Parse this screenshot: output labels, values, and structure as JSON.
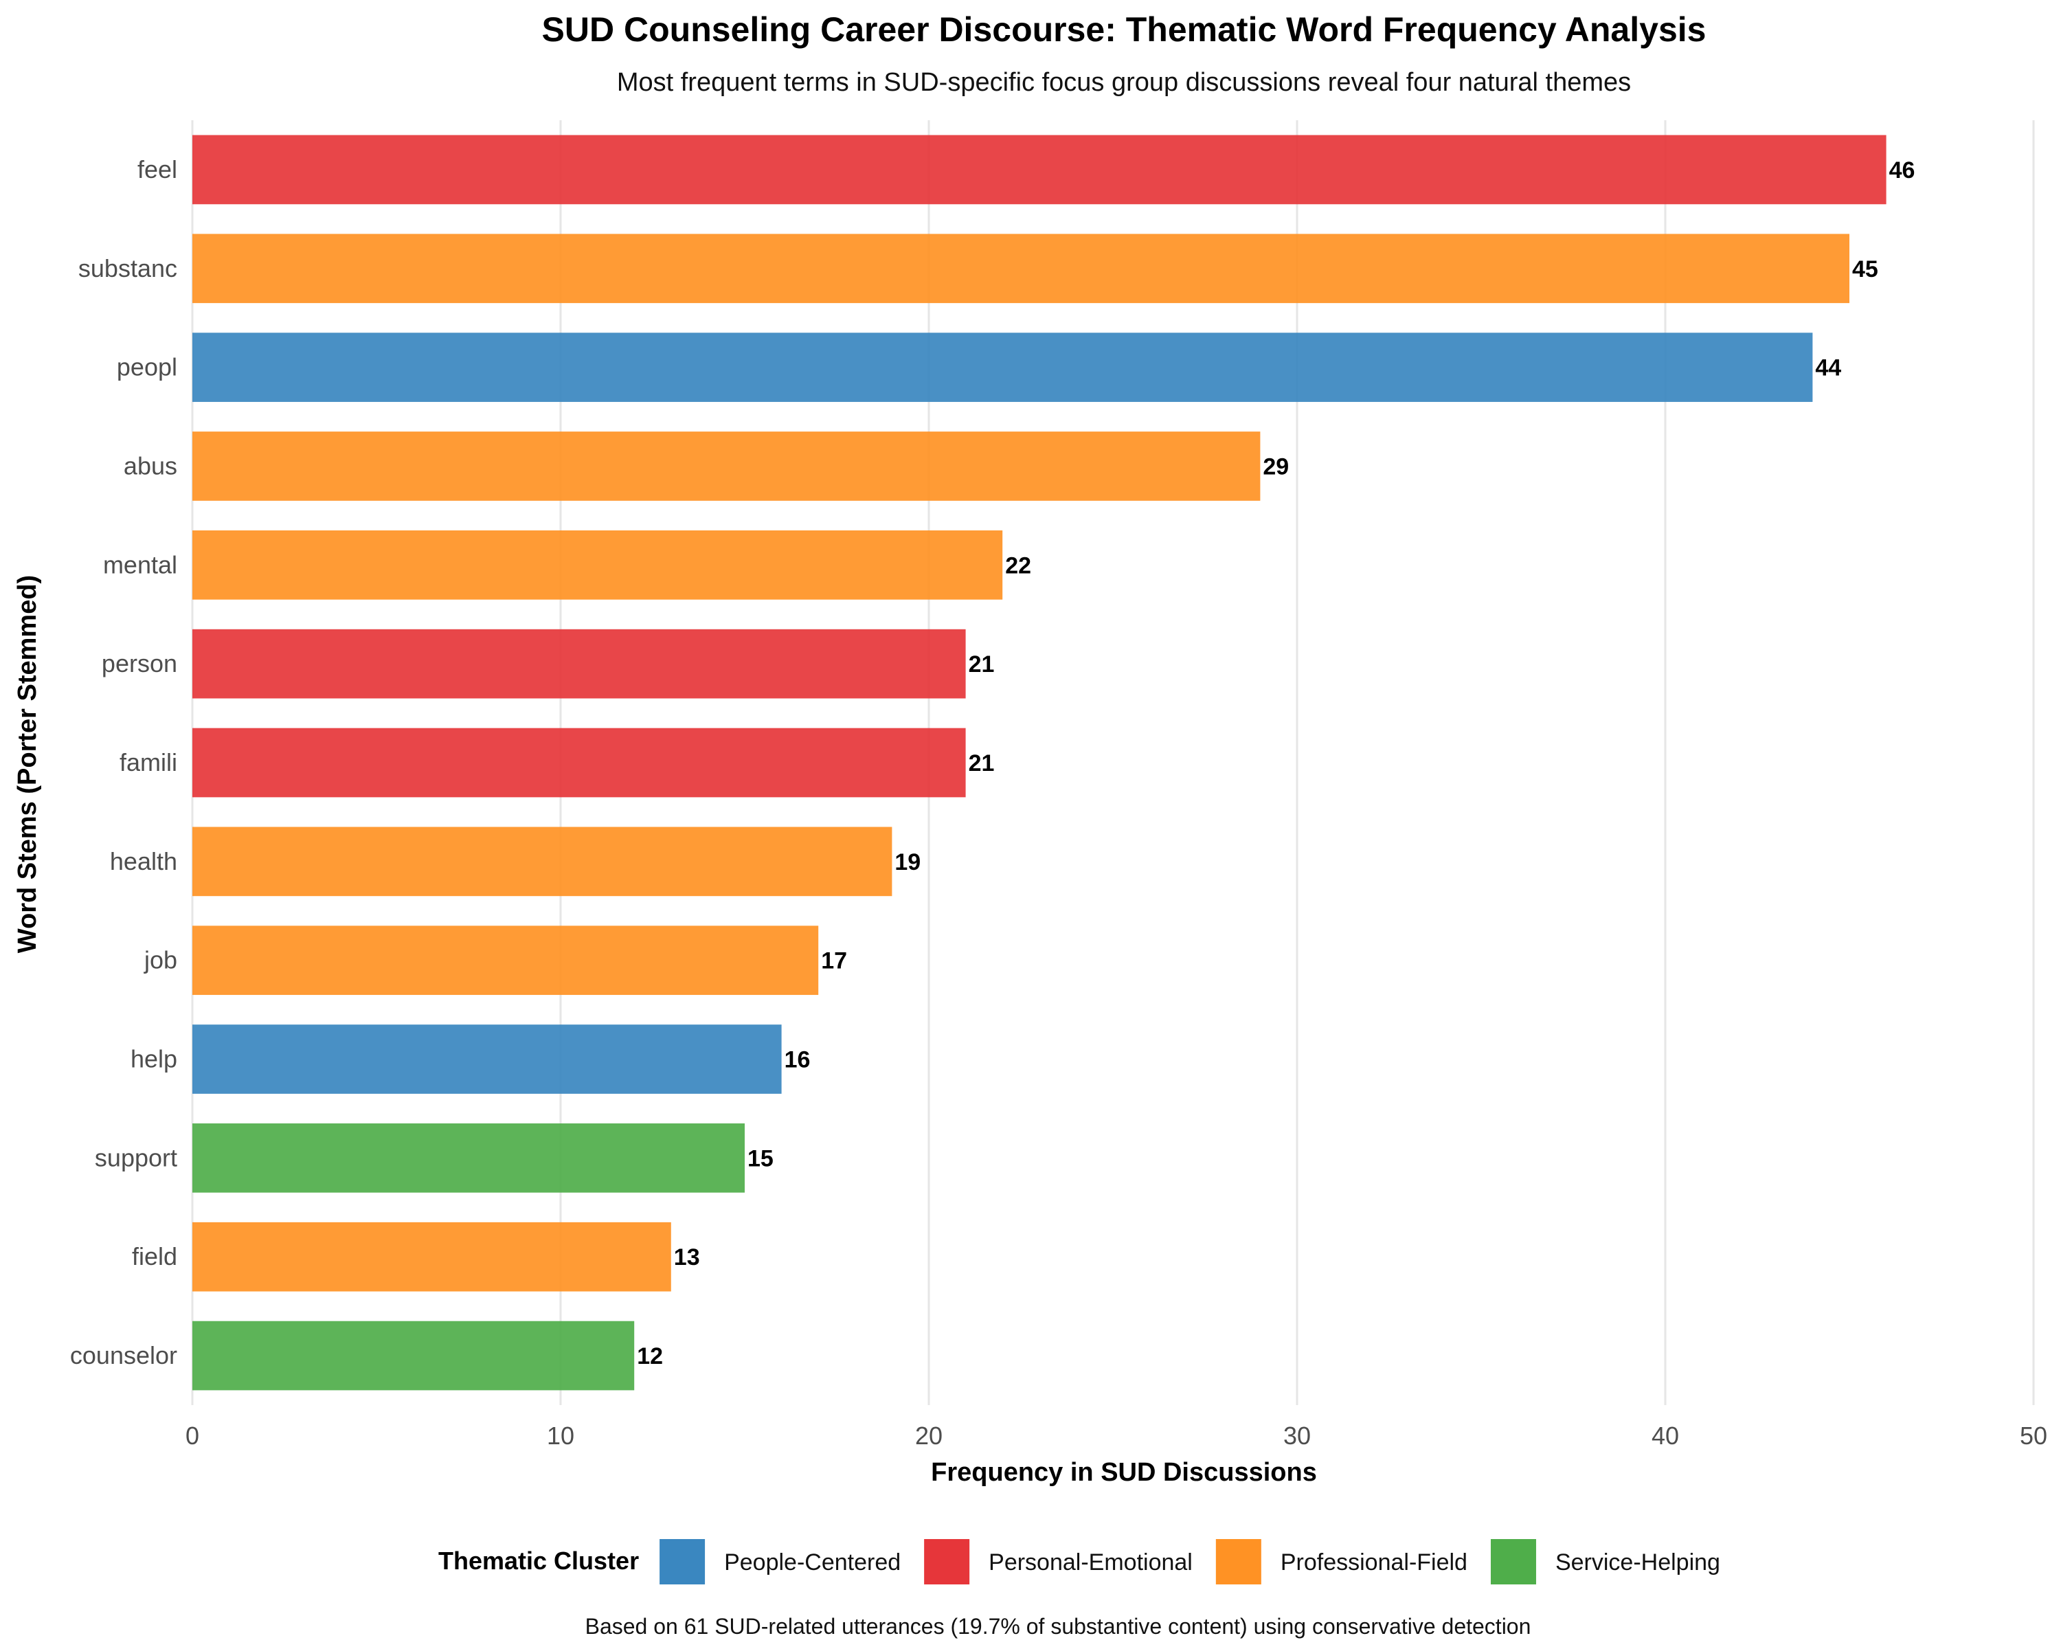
{
  "chart_data": {
    "type": "bar",
    "orientation": "horizontal",
    "title": "SUD Counseling Career Discourse: Thematic Word Frequency Analysis",
    "subtitle": "Most frequent terms in SUD-specific focus group discussions reveal four natural themes",
    "xlabel": "Frequency in SUD Discussions",
    "ylabel": "Word Stems (Porter Stemmed)",
    "xlim": [
      0,
      50
    ],
    "xticks": [
      0,
      10,
      20,
      30,
      40,
      50
    ],
    "grid": "vertical",
    "categories": [
      "feel",
      "substanc",
      "peopl",
      "abus",
      "mental",
      "person",
      "famili",
      "health",
      "job",
      "help",
      "support",
      "field",
      "counselor"
    ],
    "values": [
      46,
      45,
      44,
      29,
      22,
      21,
      21,
      19,
      17,
      16,
      15,
      13,
      12
    ],
    "clusters": [
      "Personal-Emotional",
      "Professional-Field",
      "People-Centered",
      "Professional-Field",
      "Professional-Field",
      "Personal-Emotional",
      "Personal-Emotional",
      "Professional-Field",
      "Professional-Field",
      "People-Centered",
      "Service-Helping",
      "Professional-Field",
      "Service-Helping"
    ],
    "legend": {
      "title": "Thematic Cluster",
      "position": "bottom",
      "entries": [
        {
          "name": "People-Centered",
          "color": "#3a87c0"
        },
        {
          "name": "Personal-Emotional",
          "color": "#e6363a"
        },
        {
          "name": "Professional-Field",
          "color": "#ff9224"
        },
        {
          "name": "Service-Helping",
          "color": "#4fae4a"
        }
      ]
    },
    "caption": "Based on 61 SUD-related utterances (19.7% of substantive content) using conservative detection"
  }
}
